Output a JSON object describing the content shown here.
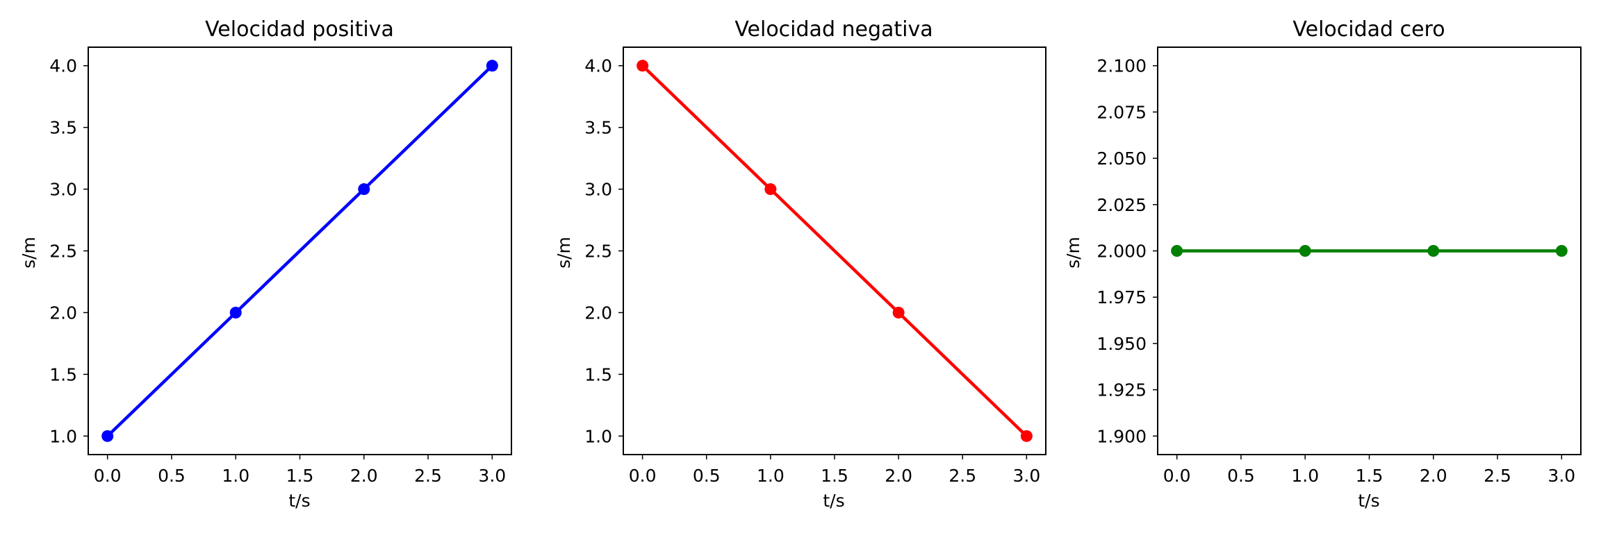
{
  "chart_data": [
    {
      "type": "line",
      "title": "Velocidad positiva",
      "xlabel": "t/s",
      "ylabel": "s/m",
      "xlim": [
        -0.15,
        3.15
      ],
      "ylim": [
        0.85,
        4.15
      ],
      "xticks": [
        "0.0",
        "0.5",
        "1.0",
        "1.5",
        "2.0",
        "2.5",
        "3.0"
      ],
      "yticks": [
        "1.0",
        "1.5",
        "2.0",
        "2.5",
        "3.0",
        "3.5",
        "4.0"
      ],
      "grid": false,
      "series": [
        {
          "color": "#0000ff",
          "marker": "circle",
          "x": [
            0,
            1,
            2,
            3
          ],
          "y": [
            1,
            2,
            3,
            4
          ]
        }
      ]
    },
    {
      "type": "line",
      "title": "Velocidad negativa",
      "xlabel": "t/s",
      "ylabel": "s/m",
      "xlim": [
        -0.15,
        3.15
      ],
      "ylim": [
        0.85,
        4.15
      ],
      "xticks": [
        "0.0",
        "0.5",
        "1.0",
        "1.5",
        "2.0",
        "2.5",
        "3.0"
      ],
      "yticks": [
        "1.0",
        "1.5",
        "2.0",
        "2.5",
        "3.0",
        "3.5",
        "4.0"
      ],
      "grid": false,
      "series": [
        {
          "color": "#ff0000",
          "marker": "circle",
          "x": [
            0,
            1,
            2,
            3
          ],
          "y": [
            4,
            3,
            2,
            1
          ]
        }
      ]
    },
    {
      "type": "line",
      "title": "Velocidad cero",
      "xlabel": "t/s",
      "ylabel": "s/m",
      "xlim": [
        -0.15,
        3.15
      ],
      "ylim": [
        1.89,
        2.11
      ],
      "xticks": [
        "0.0",
        "0.5",
        "1.0",
        "1.5",
        "2.0",
        "2.5",
        "3.0"
      ],
      "yticks": [
        "1.900",
        "1.925",
        "1.950",
        "1.975",
        "2.000",
        "2.025",
        "2.050",
        "2.075",
        "2.100"
      ],
      "grid": false,
      "series": [
        {
          "color": "#008000",
          "marker": "circle",
          "x": [
            0,
            1,
            2,
            3
          ],
          "y": [
            2,
            2,
            2,
            2
          ]
        }
      ]
    }
  ]
}
